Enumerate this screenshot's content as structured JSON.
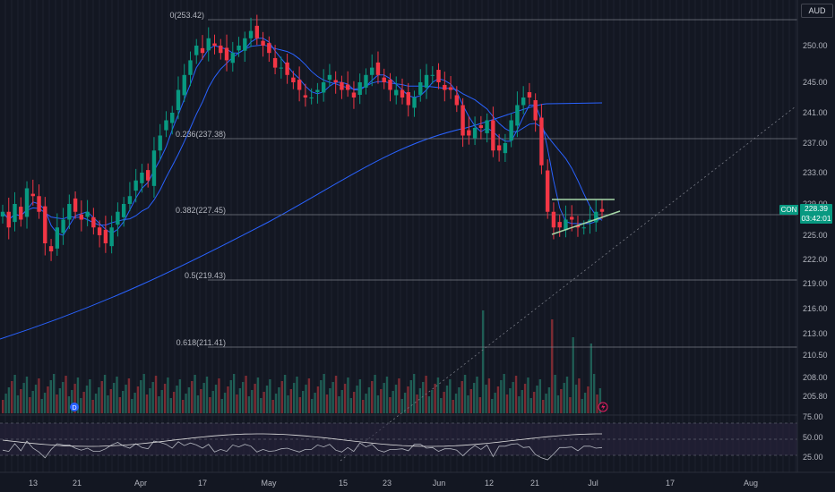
{
  "currency": "AUD",
  "ticker": "CON",
  "last_price": "228.39",
  "countdown": "03:42:01",
  "markers": {
    "dividend": "D"
  },
  "colors": {
    "up": "#089981",
    "down": "#f23645",
    "ma_fast": "#2962ff",
    "ma_mid": "#2962ff",
    "ma_slow": "#2962ff",
    "fib": "#787b86",
    "trend": "#a5d6a7",
    "rsi": "#b2b5be",
    "rsi_ma": "#e0e0e0"
  },
  "chart_data": {
    "type": "candlestick",
    "y_axis_labels": [
      "250.00",
      "245.00",
      "241.00",
      "237.00",
      "233.00",
      "229.00",
      "225.00",
      "222.00",
      "219.00",
      "216.00",
      "213.00",
      "210.50",
      "208.00",
      "205.80"
    ],
    "y_axis_values": [
      250,
      245,
      241,
      237,
      233,
      229,
      225,
      222,
      219,
      216,
      213,
      210.5,
      208,
      205.8
    ],
    "x_axis_labels": [
      "13",
      "21",
      "Apr",
      "17",
      "May",
      "15",
      "23",
      "Jun",
      "12",
      "21",
      "Jul",
      "17",
      "Aug"
    ],
    "fibonacci": [
      {
        "label": "0(253.42)",
        "value": 253.42
      },
      {
        "label": "0.236(237.38)",
        "value": 237.38
      },
      {
        "label": "0.382(227.45)",
        "value": 227.45
      },
      {
        "label": "0.5(219.43)",
        "value": 219.43
      },
      {
        "label": "0.618(211.41)",
        "value": 211.41
      }
    ],
    "rsi_axis_labels": [
      "75.00",
      "50.00",
      "25.00"
    ],
    "rsi_axis_values": [
      75,
      50,
      25
    ],
    "close": [
      228,
      226,
      229,
      227,
      231,
      230,
      228,
      224,
      223,
      226,
      227,
      229,
      228,
      227,
      228,
      226,
      225,
      224,
      226,
      228,
      229,
      230,
      232,
      233,
      232,
      236,
      238,
      240,
      241,
      244,
      246,
      248,
      250,
      249,
      251,
      250,
      249,
      248,
      249,
      250,
      251,
      252,
      251,
      250,
      249,
      247,
      247,
      246,
      245,
      244,
      243,
      243,
      244,
      245,
      246,
      245,
      244,
      244,
      243,
      245,
      246,
      247,
      246,
      245,
      244,
      244,
      243,
      242,
      243,
      245,
      246,
      246,
      245,
      244,
      244,
      242,
      238,
      238,
      239,
      239,
      240,
      236,
      236,
      237,
      240,
      242,
      243,
      243,
      240,
      234,
      228,
      226,
      226,
      227,
      227,
      226,
      226,
      227,
      228,
      228
    ]
  }
}
